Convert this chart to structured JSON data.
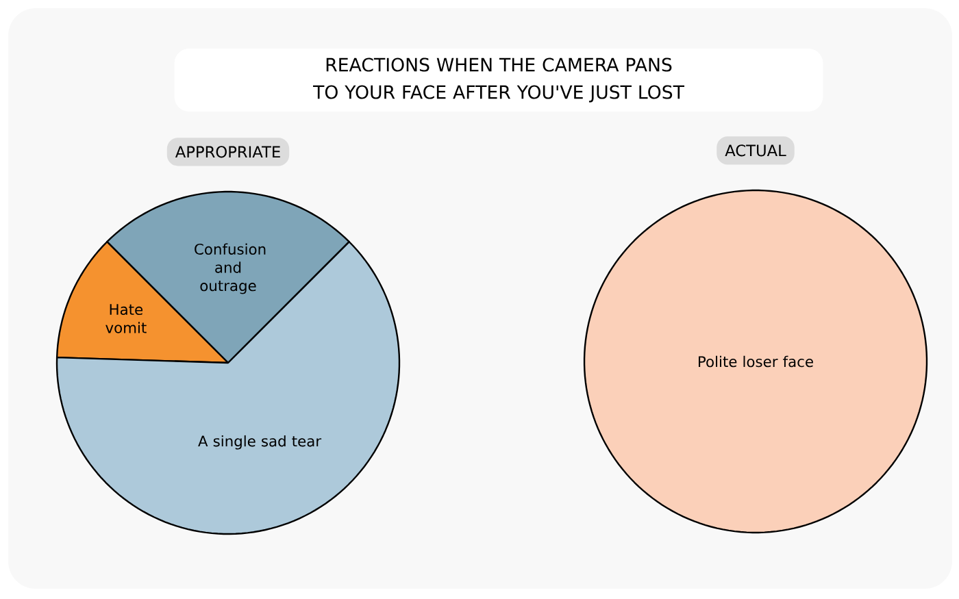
{
  "chart_data": [
    {
      "type": "other",
      "title": "REACTIONS WHEN THE CAMERA PANS TO YOUR FACE AFTER YOU'VE JUST LOST"
    },
    {
      "type": "pie",
      "title": "APPROPRIATE",
      "categories": [
        "Confusion and outrage",
        "Hate vomit",
        "A single sad tear"
      ],
      "values": [
        25,
        12,
        63
      ],
      "colors": [
        "#7fa5b8",
        "#f5922f",
        "#adc9da"
      ]
    },
    {
      "type": "pie",
      "title": "ACTUAL",
      "categories": [
        "Polite loser face"
      ],
      "values": [
        100
      ],
      "colors": [
        "#fbd0b9"
      ]
    }
  ]
}
